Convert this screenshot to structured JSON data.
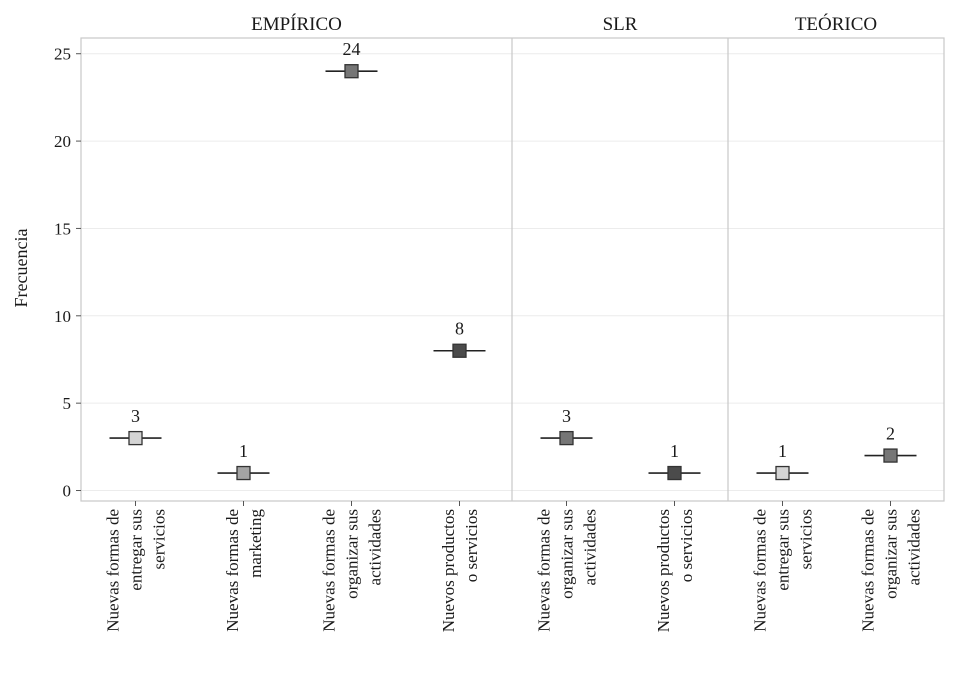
{
  "chart_data": {
    "type": "scatter",
    "ylabel": "Frecuencia",
    "ylim": [
      -0.6,
      25.9
    ],
    "yticks": [
      0,
      5,
      10,
      15,
      20,
      25
    ],
    "grid": true,
    "panels": [
      {
        "name": "EMPÍRICO",
        "points": [
          {
            "category": [
              "Nuevas formas de",
              "entregar sus",
              "servicios"
            ],
            "value": 3,
            "label": "3",
            "color": "#d4d4d4"
          },
          {
            "category": [
              "Nuevas formas de",
              "marketing"
            ],
            "value": 1,
            "label": "1",
            "color": "#a4a4a4"
          },
          {
            "category": [
              "Nuevas formas de",
              "organizar sus",
              "actividades"
            ],
            "value": 24,
            "label": "24",
            "color": "#767676"
          },
          {
            "category": [
              "Nuevos productos",
              "o servicios"
            ],
            "value": 8,
            "label": "8",
            "color": "#4b4b4b"
          }
        ]
      },
      {
        "name": "SLR",
        "points": [
          {
            "category": [
              "Nuevas formas de",
              "organizar sus",
              "actividades"
            ],
            "value": 3,
            "label": "3",
            "color": "#767676"
          },
          {
            "category": [
              "Nuevos productos",
              "o servicios"
            ],
            "value": 1,
            "label": "1",
            "color": "#4b4b4b"
          }
        ]
      },
      {
        "name": "TEÓRICO",
        "points": [
          {
            "category": [
              "Nuevas formas de",
              "entregar sus",
              "servicios"
            ],
            "value": 1,
            "label": "1",
            "color": "#d4d4d4"
          },
          {
            "category": [
              "Nuevas formas de",
              "organizar sus",
              "actividades"
            ],
            "value": 2,
            "label": "2",
            "color": "#767676"
          }
        ]
      }
    ]
  }
}
